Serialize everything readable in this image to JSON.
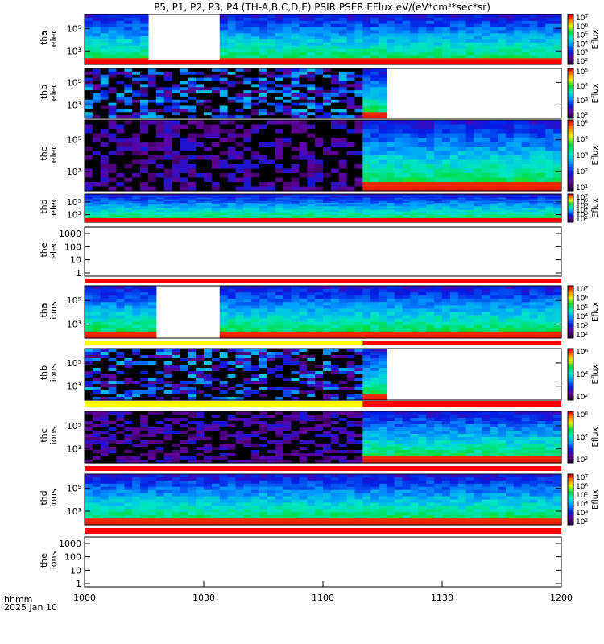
{
  "chart_data": {
    "type": "heatmap",
    "title": "P5, P1, P2, P3, P4 (TH-A,B,C,D,E) PSIR,PSER EFlux eV/(eV*cm²*sec*sr)",
    "x_ticks": [
      "1000",
      "1030",
      "1100",
      "1130",
      "1200"
    ],
    "x_corner_label_1": "hhmm",
    "x_corner_label_2": "2025 Jan 10",
    "panels": [
      {
        "id": "tha_elec",
        "ylabel_1": "tha",
        "ylabel_2": "elec",
        "y_ticks": [
          "10⁵",
          "10³"
        ],
        "zlabel": "Eflux",
        "z_ticks": [
          "10⁷",
          "10⁶",
          "10⁵",
          "10⁴",
          "10³",
          "10²"
        ],
        "style": "solar",
        "gaps": [
          [
            15.0,
            33.0
          ]
        ],
        "bottom_bar": "red"
      },
      {
        "id": "thb_elec",
        "ylabel_1": "thb",
        "ylabel_2": "elec",
        "y_ticks": [
          "10⁵",
          "10³"
        ],
        "zlabel": "Eflux",
        "z_ticks": [
          "10⁵",
          "10⁴",
          "10³",
          "10²"
        ],
        "style": "noise_then_solar",
        "switch_minute": 70.0,
        "gaps": [
          [
            75.0,
            120.0
          ]
        ],
        "bottom_bar": "none"
      },
      {
        "id": "thc_elec",
        "ylabel_1": "thc",
        "ylabel_2": "elec",
        "y_ticks": [
          "10⁵",
          "10³"
        ],
        "zlabel": "Eflux",
        "z_ticks": [
          "10⁵",
          "10⁴",
          "10³",
          "10²",
          "10¹"
        ],
        "style": "noise_then_solar",
        "switch_minute": 70.0,
        "gaps": [],
        "bottom_bar": "none"
      },
      {
        "id": "thd_elec",
        "ylabel_1": "thd",
        "ylabel_2": "elec",
        "y_ticks": [
          "10⁵",
          "10³"
        ],
        "zlabel": "Eflux",
        "z_ticks": [
          "10⁷",
          "10⁶",
          "10⁵",
          "10⁴",
          "10³",
          "10²"
        ],
        "style": "solar",
        "gaps": [],
        "bottom_bar": "red"
      },
      {
        "id": "the_elec",
        "ylabel_1": "the",
        "ylabel_2": "elec",
        "y_ticks": [
          "1000",
          "100",
          "10",
          "1"
        ],
        "style": "empty",
        "gaps": [],
        "bottom_bar": "red"
      },
      {
        "id": "tha_ions",
        "ylabel_1": "tha",
        "ylabel_2": "ions",
        "y_ticks": [
          "10⁵",
          "10³"
        ],
        "zlabel": "Eflux",
        "z_ticks": [
          "10⁷",
          "10⁶",
          "10⁵",
          "10⁴",
          "10³",
          "10²"
        ],
        "style": "solar",
        "gaps": [
          [
            17.0,
            33.0
          ]
        ],
        "bottom_bar": "yellow_red",
        "bar_switch_minute": 70.0
      },
      {
        "id": "thb_ions",
        "ylabel_1": "thb",
        "ylabel_2": "ions",
        "y_ticks": [
          "10⁵",
          "10³"
        ],
        "zlabel": "Eflux",
        "z_ticks": [
          "10⁶",
          "10⁴",
          "10²"
        ],
        "style": "noise_then_solar",
        "switch_minute": 70.0,
        "gaps": [
          [
            75.0,
            120.0
          ]
        ],
        "bottom_bar": "yellow_red",
        "bar_switch_minute": 70.0
      },
      {
        "id": "thc_ions",
        "ylabel_1": "thc",
        "ylabel_2": "ions",
        "y_ticks": [
          "10⁵",
          "10³"
        ],
        "zlabel": "Eflux",
        "z_ticks": [
          "10⁶",
          "10⁴",
          "10²"
        ],
        "style": "noise_then_solar",
        "switch_minute": 70.0,
        "gaps": [],
        "bottom_bar": "red"
      },
      {
        "id": "thd_ions",
        "ylabel_1": "thd",
        "ylabel_2": "ions",
        "y_ticks": [
          "10⁵",
          "10³"
        ],
        "zlabel": "Eflux",
        "z_ticks": [
          "10⁷",
          "10⁶",
          "10⁵",
          "10⁴",
          "10³",
          "10²"
        ],
        "style": "solar",
        "gaps": [],
        "bottom_bar": "red"
      },
      {
        "id": "the_ions",
        "ylabel_1": "the",
        "ylabel_2": "ions",
        "y_ticks": [
          "1000",
          "100",
          "10",
          "1"
        ],
        "style": "empty",
        "gaps": [],
        "bottom_bar": "none"
      }
    ],
    "x_range_minutes": [
      0,
      120
    ]
  }
}
